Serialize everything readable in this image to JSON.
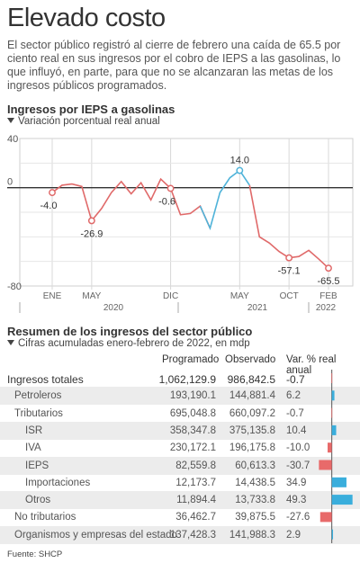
{
  "title": "Elevado costo",
  "intro": "El sector público registró al cierre de febrero una caída de 65.5 por ciento real en sus ingresos por el cobro de IEPS a las gasolinas, lo que influyó, en parte, para que no se alcanzaran las metas de los ingresos públicos programados.",
  "chart_section": {
    "title": "Ingresos por IEPS a gasolinas",
    "subtitle": "Variación porcentual real anual"
  },
  "colors": {
    "positive": "#4fb3d9",
    "negative": "#e06a6a",
    "bar_positive": "#3aaedc",
    "bar_negative": "#e86a6a"
  },
  "chart_data": [
    {
      "type": "line",
      "title": "Ingresos por IEPS a gasolinas",
      "ylabel": "Variación porcentual real anual",
      "ylim": [
        -80,
        40
      ],
      "y_ticks": [
        "40",
        "0",
        "-80"
      ],
      "x_ticks": [
        "ENE",
        "MAY",
        "DIC",
        "MAY",
        "OCT",
        "FEB"
      ],
      "year_labels": [
        "2020",
        "2021",
        "2022"
      ],
      "grid": true,
      "series": [
        {
          "values": [
            -4.0,
            2,
            3,
            1,
            -26.9,
            -17,
            -4,
            5,
            -5,
            4,
            -10,
            7,
            -0.6,
            -22,
            -21,
            -15,
            -33,
            -4,
            8,
            14.0,
            2,
            -40,
            -45,
            -52,
            -57.1,
            -56,
            -51,
            -58,
            -65.5
          ],
          "positive_from_index": 16
        }
      ],
      "annotations": [
        {
          "index": 0,
          "label": "-4.0"
        },
        {
          "index": 4,
          "label": "-26.9"
        },
        {
          "index": 12,
          "label": "-0.6"
        },
        {
          "index": 19,
          "label": "14.0"
        },
        {
          "index": 24,
          "label": "-57.1"
        },
        {
          "index": 28,
          "label": "-65.5"
        }
      ]
    },
    {
      "type": "table",
      "title": "Resumen de los ingresos del sector público",
      "subtitle": "Cifras acumuladas enero-febrero de 2022, en mdp",
      "columns": [
        "Programado",
        "Observado",
        "Var. % real anual"
      ],
      "bar_axis": {
        "min": -40,
        "max": 50,
        "ticks": [
          "-40",
          "0",
          "50"
        ]
      },
      "rows": [
        {
          "label": "Ingresos totales",
          "programado": "1,062,129.9",
          "observado": "986,842.5",
          "var_label": "-0.7",
          "var": -0.7,
          "level": 0,
          "total": true
        },
        {
          "label": "Petroleros",
          "programado": "193,190.1",
          "observado": "144,881.4",
          "var_label": "6.2",
          "var": 6.2,
          "level": 1
        },
        {
          "label": "Tributarios",
          "programado": "695,048.8",
          "observado": "660,097.2",
          "var_label": "-0.7",
          "var": -0.7,
          "level": 1
        },
        {
          "label": "ISR",
          "programado": "358,347.8",
          "observado": "375,135.8",
          "var_label": "10.4",
          "var": 10.4,
          "level": 2
        },
        {
          "label": "IVA",
          "programado": "230,172.1",
          "observado": "196,175.8",
          "var_label": "-10.0",
          "var": -10.0,
          "level": 2
        },
        {
          "label": "IEPS",
          "programado": "82,559.8",
          "observado": "60,613.3",
          "var_label": "-30.7",
          "var": -30.7,
          "level": 2
        },
        {
          "label": "Importaciones",
          "programado": "12,173.7",
          "observado": "14,438.5",
          "var_label": "34.9",
          "var": 34.9,
          "level": 2
        },
        {
          "label": "Otros",
          "programado": "11,894.4",
          "observado": "13,733.8",
          "var_label": "49.3",
          "var": 49.3,
          "level": 2
        },
        {
          "label": "No tributarios",
          "programado": "36,462.7",
          "observado": "39,875.5",
          "var_label": "-27.6",
          "var": -27.6,
          "level": 1
        },
        {
          "label": "Organismos y empresas del estado",
          "programado": "137,428.3",
          "observado": "141,988.3",
          "var_label": "2.9",
          "var": 2.9,
          "level": 1
        }
      ]
    }
  ],
  "table_section": {
    "title": "Resumen de los ingresos del sector público",
    "subtitle": "Cifras acumuladas enero-febrero de 2022, en mdp"
  },
  "source": "Fuente: SHCP"
}
